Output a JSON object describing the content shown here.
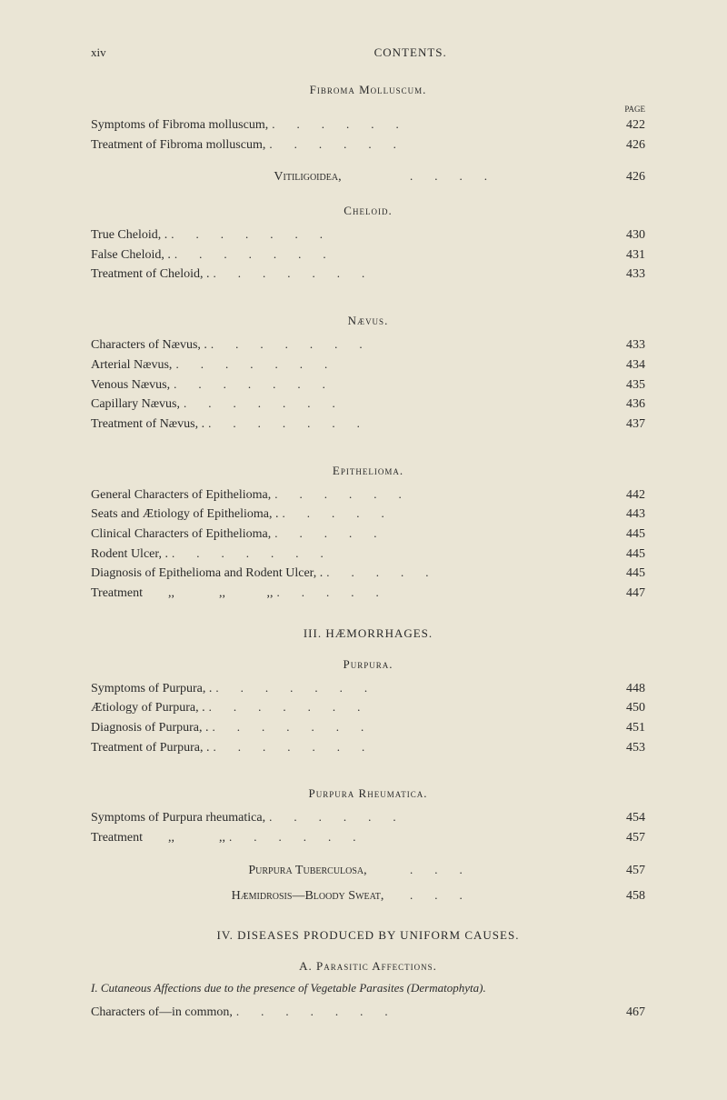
{
  "page_number": "xiv",
  "header": "CONTENTS.",
  "page_label": "PAGE",
  "s1": {
    "title": "Fibroma Molluscum."
  },
  "e1": {
    "label": "Symptoms of Fibroma molluscum,",
    "pg": "422"
  },
  "e2": {
    "label": "Treatment of Fibroma molluscum,",
    "pg": "426"
  },
  "s2": {
    "title": "Vitiligoidea,",
    "pg": "426"
  },
  "s3": {
    "title": "Cheloid."
  },
  "e3": {
    "label": "True Cheloid, .",
    "pg": "430"
  },
  "e4": {
    "label": "False Cheloid, .",
    "pg": "431"
  },
  "e5": {
    "label": "Treatment of Cheloid, .",
    "pg": "433"
  },
  "s4": {
    "title": "Nævus."
  },
  "e6": {
    "label": "Characters of Nævus, .",
    "pg": "433"
  },
  "e7": {
    "label": "Arterial Nævus,",
    "pg": "434"
  },
  "e8": {
    "label": "Venous Nævus,",
    "pg": "435"
  },
  "e9": {
    "label": "Capillary Nævus,",
    "pg": "436"
  },
  "e10": {
    "label": "Treatment of Nævus, .",
    "pg": "437"
  },
  "s5": {
    "title": "Epithelioma."
  },
  "e11": {
    "label": "General Characters of Epithelioma,",
    "pg": "442"
  },
  "e12": {
    "label": "Seats and Ætiology of Epithelioma, .",
    "pg": "443"
  },
  "e13": {
    "label": "Clinical Characters of Epithelioma,",
    "pg": "445"
  },
  "e14": {
    "label": "Rodent Ulcer, .",
    "pg": "445"
  },
  "e15": {
    "label": "Diagnosis of Epithelioma and Rodent Ulcer, .",
    "pg": "445"
  },
  "e16": {
    "label": "Treatment        ,,              ,,             ,,",
    "pg": "447"
  },
  "s6": {
    "title": "III. HÆMORRHAGES."
  },
  "s7": {
    "title": "Purpura."
  },
  "e17": {
    "label": "Symptoms of Purpura, .",
    "pg": "448"
  },
  "e18": {
    "label": "Ætiology of Purpura, .",
    "pg": "450"
  },
  "e19": {
    "label": "Diagnosis of Purpura, .",
    "pg": "451"
  },
  "e20": {
    "label": "Treatment of Purpura, .",
    "pg": "453"
  },
  "s8": {
    "title": "Purpura Rheumatica."
  },
  "e21": {
    "label": "Symptoms of Purpura rheumatica,",
    "pg": "454"
  },
  "e22": {
    "label": "Treatment        ,,              ,,",
    "pg": "457"
  },
  "s9": {
    "title": "Purpura Tuberculosa,",
    "pg": "457"
  },
  "s10": {
    "title": "Hæmidrosis—Bloody Sweat,",
    "pg": "458"
  },
  "s11": {
    "title": "IV. DISEASES PRODUCED BY UNIFORM CAUSES."
  },
  "s12": {
    "title": "A. Parasitic Affections."
  },
  "italic": "I. Cutaneous Affections due to the presence of Vegetable Parasites (Dermatophyta).",
  "e23": {
    "label": "Characters of—in common,",
    "pg": "467"
  }
}
